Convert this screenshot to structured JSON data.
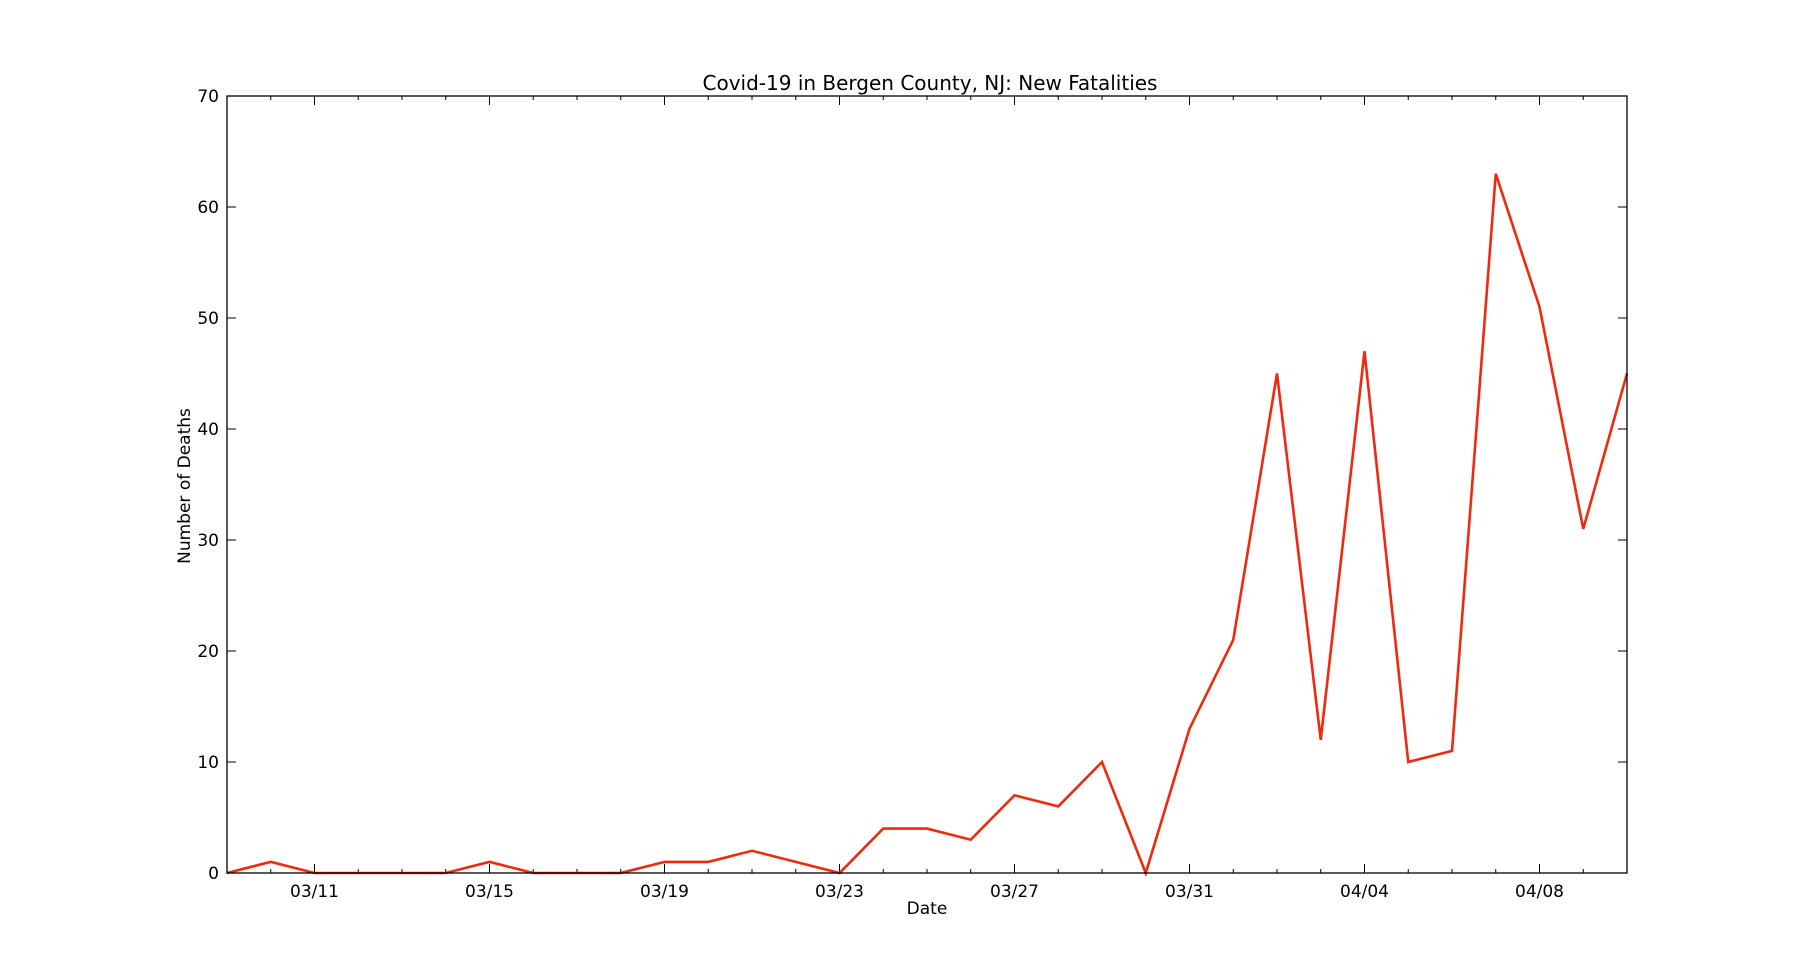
{
  "chart_data": {
    "type": "line",
    "title": "Covid-19 in Bergen County, NJ: New Fatalities",
    "xlabel": "Date",
    "ylabel": "Number of Deaths",
    "x": [
      "03/09",
      "03/10",
      "03/11",
      "03/12",
      "03/13",
      "03/14",
      "03/15",
      "03/16",
      "03/17",
      "03/18",
      "03/19",
      "03/20",
      "03/21",
      "03/22",
      "03/23",
      "03/24",
      "03/25",
      "03/26",
      "03/27",
      "03/28",
      "03/29",
      "03/30",
      "03/31",
      "04/01",
      "04/02",
      "04/03",
      "04/04",
      "04/05",
      "04/06",
      "04/07",
      "04/08",
      "04/09",
      "04/10"
    ],
    "series": [
      {
        "values": [
          0,
          1,
          0,
          0,
          0,
          0,
          1,
          0,
          0,
          0,
          1,
          1,
          2,
          1,
          0,
          4,
          4,
          3,
          7,
          6,
          10,
          0,
          13,
          21,
          45,
          12,
          47,
          10,
          11,
          63,
          51,
          31,
          45
        ],
        "color": "#ee2a0e"
      }
    ],
    "xticks": [
      "03/11",
      "03/15",
      "03/19",
      "03/23",
      "03/27",
      "03/31",
      "04/04",
      "04/08"
    ],
    "yticks": [
      0,
      10,
      20,
      30,
      40,
      50,
      60,
      70
    ],
    "ylim": [
      0,
      70
    ],
    "grid": false,
    "minor_x_ticks": "every day"
  }
}
